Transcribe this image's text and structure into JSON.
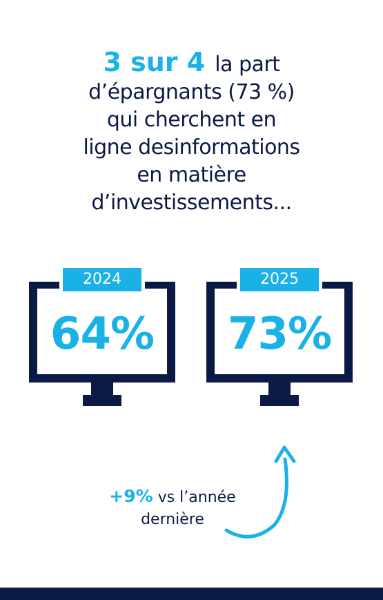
{
  "headline": {
    "highlight": "3 sur 4",
    "line1_rest": "la part",
    "line2": "d’épargnants (73 %)",
    "line3": "qui cherchent en",
    "line4": "ligne desinformations",
    "line5": "en matière",
    "line6": "d’investissements..."
  },
  "stats": [
    {
      "year": "2024",
      "value": "64%"
    },
    {
      "year": "2025",
      "value": "73%"
    }
  ],
  "change": {
    "value": "+9%",
    "text1": "vs l’année",
    "text2": "dernière"
  },
  "colors": {
    "accent": "#1ab1e6",
    "navy": "#0b1a45",
    "background": "#ffffff"
  },
  "icons": [
    "monitor-icon",
    "curved-arrow-icon"
  ]
}
